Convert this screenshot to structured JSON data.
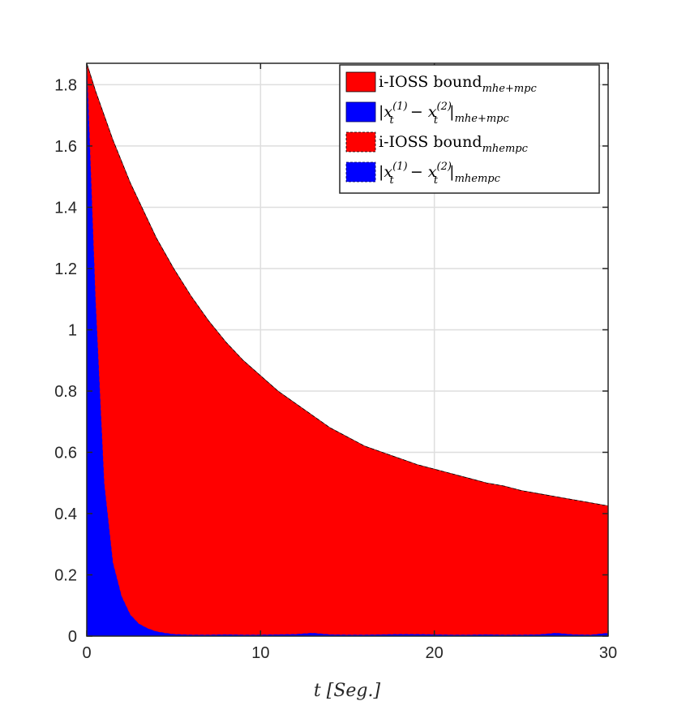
{
  "chart_data": {
    "type": "area",
    "xlabel": "t [Seg.]",
    "ylabel": "",
    "xlim": [
      0,
      30
    ],
    "ylim": [
      0,
      1.87
    ],
    "xticks": [
      0,
      10,
      20,
      30
    ],
    "xtick_labels": [
      "0",
      "10",
      "20",
      "30"
    ],
    "yticks": [
      0,
      0.2,
      0.4,
      0.6,
      0.8,
      1,
      1.2,
      1.4,
      1.6,
      1.8
    ],
    "ytick_labels": [
      "0",
      "0.2",
      "0.4",
      "0.6",
      "0.8",
      "1",
      "1.2",
      "1.4",
      "1.6",
      "1.8"
    ],
    "grid": true,
    "legend_position": "top-right",
    "x": [
      0,
      0.5,
      1,
      1.5,
      2,
      2.5,
      3,
      3.5,
      4,
      4.5,
      5,
      6,
      7,
      8,
      9,
      10,
      11,
      12,
      13,
      14,
      15,
      16,
      17,
      18,
      19,
      20,
      21,
      22,
      23,
      24,
      25,
      26,
      27,
      28,
      29,
      30
    ],
    "series": [
      {
        "name": "i-IOSS bound mhe+mpc",
        "color": "#ff0000",
        "values": [
          1.87,
          1.78,
          1.7,
          1.62,
          1.55,
          1.48,
          1.42,
          1.36,
          1.3,
          1.25,
          1.2,
          1.11,
          1.03,
          0.96,
          0.9,
          0.85,
          0.8,
          0.76,
          0.72,
          0.68,
          0.65,
          0.62,
          0.6,
          0.58,
          0.56,
          0.545,
          0.53,
          0.515,
          0.5,
          0.49,
          0.475,
          0.465,
          0.455,
          0.445,
          0.435,
          0.425
        ]
      },
      {
        "name": "|x_t^(1) - x_t^(2)| mhe+mpc",
        "color": "#0000ff",
        "values": [
          1.87,
          1.1,
          0.5,
          0.24,
          0.13,
          0.07,
          0.04,
          0.025,
          0.015,
          0.01,
          0.006,
          0.004,
          0.004,
          0.005,
          0.004,
          0.004,
          0.005,
          0.006,
          0.01,
          0.005,
          0.004,
          0.004,
          0.005,
          0.006,
          0.006,
          0.005,
          0.004,
          0.004,
          0.005,
          0.004,
          0.004,
          0.005,
          0.01,
          0.005,
          0.004,
          0.01
        ]
      },
      {
        "name": "i-IOSS bound mhempc",
        "color": "#ff0000",
        "values": [
          1.87,
          1.78,
          1.7,
          1.62,
          1.55,
          1.48,
          1.42,
          1.36,
          1.3,
          1.25,
          1.2,
          1.11,
          1.03,
          0.96,
          0.9,
          0.85,
          0.8,
          0.76,
          0.72,
          0.68,
          0.65,
          0.62,
          0.6,
          0.58,
          0.56,
          0.545,
          0.53,
          0.515,
          0.5,
          0.49,
          0.475,
          0.465,
          0.455,
          0.445,
          0.435,
          0.425
        ]
      },
      {
        "name": "|x_t^(1) - x_t^(2)| mhempc",
        "color": "#0000ff",
        "values": [
          1.87,
          1.1,
          0.5,
          0.24,
          0.13,
          0.07,
          0.04,
          0.025,
          0.015,
          0.01,
          0.006,
          0.004,
          0.004,
          0.005,
          0.004,
          0.004,
          0.005,
          0.006,
          0.01,
          0.005,
          0.004,
          0.004,
          0.005,
          0.006,
          0.006,
          0.005,
          0.004,
          0.004,
          0.005,
          0.004,
          0.004,
          0.005,
          0.01,
          0.005,
          0.004,
          0.01
        ]
      }
    ],
    "legend": [
      {
        "main": "i-IOSS bound",
        "sub": "mhe+mpc",
        "color": "#ff0000",
        "style": "solid"
      },
      {
        "main": "|x",
        "sup": "(1)",
        "sub_t": "t",
        "mid": " − x",
        "sup2": "(2)",
        "sub_t2": "t",
        "close": "|",
        "sub": "mhe+mpc",
        "color": "#0000ff",
        "style": "solid"
      },
      {
        "main": "i-IOSS bound",
        "sub": "mhempc",
        "color": "#ff0000",
        "style": "dashed"
      },
      {
        "main": "|x",
        "sup": "(1)",
        "sub_t": "t",
        "mid": " − x",
        "sup2": "(2)",
        "sub_t2": "t",
        "close": "|",
        "sub": "mhempc",
        "color": "#0000ff",
        "style": "dashed"
      }
    ]
  }
}
